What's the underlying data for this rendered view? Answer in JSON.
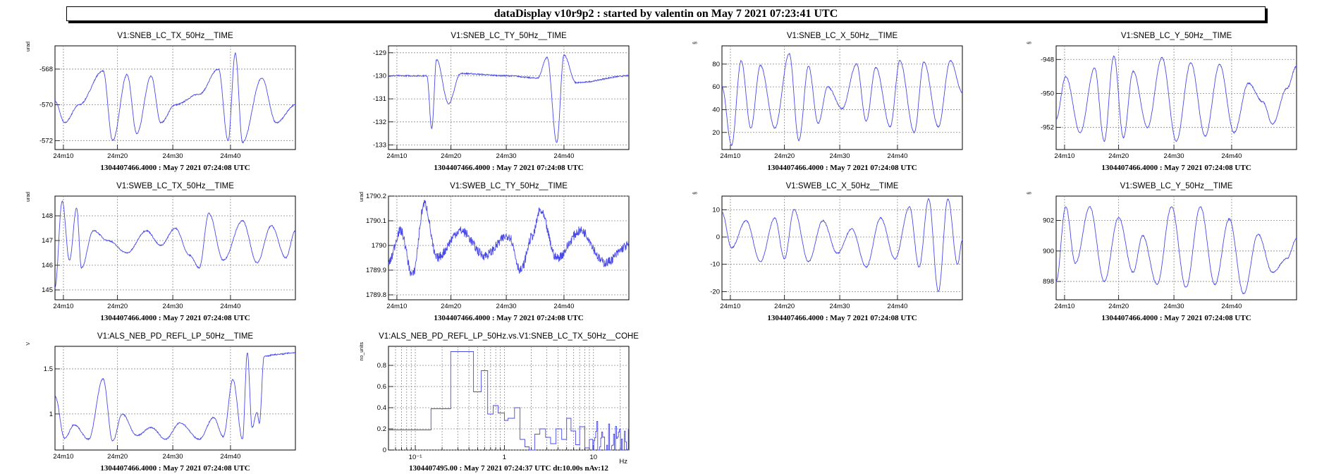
{
  "header": {
    "title": "dataDisplay v10r9p2 : started by valentin on May  7 2021 07:23:41 UTC"
  },
  "chart_data": [
    {
      "type": "line",
      "title": "V1:SNEB_LC_TX_50Hz__TIME",
      "ylabel": "urad",
      "ylim": [
        -572.5,
        -566.7
      ],
      "yticks": [
        -568,
        -570,
        -572
      ],
      "xticks": [
        "24m10",
        "24m20",
        "24m30",
        "24m40"
      ],
      "footer": "1304407466.4000 : May  7 2021 07:24:08 UTC",
      "key_points": [
        [
          0.0,
          -569.8
        ],
        [
          0.04,
          -571
        ],
        [
          0.1,
          -570
        ],
        [
          0.2,
          -568.1
        ],
        [
          0.24,
          -572
        ],
        [
          0.3,
          -568.3
        ],
        [
          0.34,
          -571.6
        ],
        [
          0.4,
          -568.4
        ],
        [
          0.44,
          -571
        ],
        [
          0.5,
          -570
        ],
        [
          0.6,
          -569.4
        ],
        [
          0.68,
          -568
        ],
        [
          0.72,
          -572
        ],
        [
          0.75,
          -567.1
        ],
        [
          0.78,
          -572.1
        ],
        [
          0.86,
          -568.5
        ],
        [
          0.92,
          -571
        ],
        [
          1.0,
          -570
        ]
      ]
    },
    {
      "type": "line",
      "title": "V1:SNEB_LC_TY_50Hz__TIME",
      "ylabel": "",
      "ylim": [
        -133.2,
        -128.7
      ],
      "yticks": [
        -129,
        -130,
        -131,
        -132,
        -133
      ],
      "xticks": [
        "24m10",
        "24m20",
        "24m30",
        "24m40"
      ],
      "footer": "1304407466.4000 : May  7 2021 07:24:08 UTC",
      "key_points": [
        [
          0.0,
          -130
        ],
        [
          0.16,
          -130
        ],
        [
          0.18,
          -132.3
        ],
        [
          0.2,
          -129.3
        ],
        [
          0.25,
          -131.2
        ],
        [
          0.3,
          -129.9
        ],
        [
          0.5,
          -130
        ],
        [
          0.62,
          -130.1
        ],
        [
          0.66,
          -129.2
        ],
        [
          0.7,
          -132.9
        ],
        [
          0.73,
          -129.1
        ],
        [
          0.78,
          -130.3
        ],
        [
          1.0,
          -130
        ]
      ]
    },
    {
      "type": "line",
      "title": "V1:SNEB_LC_X_50Hz__TIME",
      "ylabel": "§",
      "ylim": [
        5,
        96
      ],
      "yticks": [
        20,
        40,
        60,
        80
      ],
      "xticks": [
        "24m10",
        "24m20",
        "24m30",
        "24m40"
      ],
      "footer": "1304407466.4000 : May  7 2021 07:24:08 UTC",
      "key_points": [
        [
          0.0,
          60
        ],
        [
          0.04,
          9
        ],
        [
          0.08,
          83
        ],
        [
          0.12,
          24
        ],
        [
          0.16,
          79
        ],
        [
          0.22,
          24
        ],
        [
          0.28,
          89
        ],
        [
          0.32,
          13
        ],
        [
          0.36,
          78
        ],
        [
          0.4,
          28
        ],
        [
          0.44,
          60
        ],
        [
          0.5,
          41
        ],
        [
          0.56,
          80
        ],
        [
          0.6,
          30
        ],
        [
          0.64,
          77
        ],
        [
          0.7,
          25
        ],
        [
          0.74,
          83
        ],
        [
          0.8,
          20
        ],
        [
          0.84,
          82
        ],
        [
          0.9,
          25
        ],
        [
          0.95,
          83
        ],
        [
          1.0,
          55
        ]
      ]
    },
    {
      "type": "line",
      "title": "V1:SNEB_LC_Y_50Hz__TIME",
      "ylabel": "§",
      "ylim": [
        -953.3,
        -947.2
      ],
      "yticks": [
        -948,
        -950,
        -952
      ],
      "xticks": [
        "24m10",
        "24m20",
        "24m30",
        "24m40"
      ],
      "footer": "1304407466.4000 : May  7 2021 07:24:08 UTC",
      "key_points": [
        [
          0.0,
          -951.5
        ],
        [
          0.04,
          -949
        ],
        [
          0.1,
          -952.3
        ],
        [
          0.16,
          -948.5
        ],
        [
          0.2,
          -952.8
        ],
        [
          0.24,
          -947.8
        ],
        [
          0.28,
          -952.6
        ],
        [
          0.32,
          -948.7
        ],
        [
          0.38,
          -952
        ],
        [
          0.44,
          -947.9
        ],
        [
          0.5,
          -952.8
        ],
        [
          0.56,
          -948.2
        ],
        [
          0.62,
          -952.5
        ],
        [
          0.68,
          -948.3
        ],
        [
          0.74,
          -952.3
        ],
        [
          0.8,
          -949.4
        ],
        [
          0.86,
          -950.5
        ],
        [
          0.9,
          -951.8
        ],
        [
          0.96,
          -949.7
        ],
        [
          1.0,
          -948.4
        ]
      ]
    },
    {
      "type": "line",
      "title": "V1:SWEB_LC_TX_50Hz__TIME",
      "ylabel": "urad",
      "ylim": [
        144.6,
        148.8
      ],
      "yticks": [
        145,
        146,
        147,
        148
      ],
      "xticks": [
        "24m10",
        "24m20",
        "24m30",
        "24m40"
      ],
      "footer": "1304407466.4000 : May  7 2021 07:24:08 UTC",
      "key_points": [
        [
          0.0,
          145.1
        ],
        [
          0.03,
          148.6
        ],
        [
          0.06,
          146.2
        ],
        [
          0.09,
          148.3
        ],
        [
          0.11,
          145.9
        ],
        [
          0.16,
          147.4
        ],
        [
          0.22,
          147
        ],
        [
          0.3,
          146.5
        ],
        [
          0.38,
          147.4
        ],
        [
          0.44,
          146.8
        ],
        [
          0.5,
          147.5
        ],
        [
          0.56,
          146.4
        ],
        [
          0.6,
          145.9
        ],
        [
          0.64,
          148.1
        ],
        [
          0.7,
          146.2
        ],
        [
          0.78,
          147.8
        ],
        [
          0.84,
          146.1
        ],
        [
          0.9,
          147.6
        ],
        [
          0.96,
          146.3
        ],
        [
          1.0,
          147.4
        ]
      ]
    },
    {
      "type": "line",
      "title": "V1:SWEB_LC_TY_50Hz__TIME",
      "ylabel": "urad",
      "ylim": [
        1789.78,
        1790.2
      ],
      "yticks": [
        1789.8,
        1789.9,
        1790,
        1790.1,
        1790.2
      ],
      "xticks": [
        "24m10",
        "24m20",
        "24m30",
        "24m40"
      ],
      "footer": "1304407466.4000 : May  7 2021 07:24:08 UTC",
      "key_points": [
        [
          0.0,
          1789.93
        ],
        [
          0.05,
          1790.06
        ],
        [
          0.1,
          1789.88
        ],
        [
          0.15,
          1790.17
        ],
        [
          0.2,
          1789.95
        ],
        [
          0.3,
          1790.06
        ],
        [
          0.4,
          1789.96
        ],
        [
          0.5,
          1790.04
        ],
        [
          0.55,
          1789.9
        ],
        [
          0.6,
          1790.04
        ],
        [
          0.63,
          1790.14
        ],
        [
          0.7,
          1789.95
        ],
        [
          0.8,
          1790.06
        ],
        [
          0.9,
          1789.93
        ],
        [
          1.0,
          1790
        ]
      ]
    },
    {
      "type": "line",
      "title": "V1:SWEB_LC_X_50Hz__TIME",
      "ylabel": "§",
      "ylim": [
        -23,
        15
      ],
      "yticks": [
        10,
        0,
        -10,
        -20
      ],
      "xticks": [
        "24m10",
        "24m20",
        "24m30",
        "24m40"
      ],
      "footer": "1304407466.4000 : May  7 2021 07:24:08 UTC",
      "key_points": [
        [
          0.0,
          9
        ],
        [
          0.04,
          -4
        ],
        [
          0.1,
          6
        ],
        [
          0.16,
          -9
        ],
        [
          0.22,
          7
        ],
        [
          0.26,
          -8
        ],
        [
          0.3,
          10
        ],
        [
          0.36,
          -9
        ],
        [
          0.42,
          6
        ],
        [
          0.48,
          -6
        ],
        [
          0.54,
          3
        ],
        [
          0.6,
          -11
        ],
        [
          0.66,
          7
        ],
        [
          0.72,
          -8
        ],
        [
          0.78,
          11
        ],
        [
          0.82,
          -11
        ],
        [
          0.86,
          14
        ],
        [
          0.9,
          -20
        ],
        [
          0.94,
          14
        ],
        [
          0.98,
          -10
        ],
        [
          1.0,
          -1
        ]
      ]
    },
    {
      "type": "line",
      "title": "V1:SWEB_LC_Y_50Hz__TIME",
      "ylabel": "§",
      "ylim": [
        896.8,
        903.6
      ],
      "yticks": [
        898,
        900,
        902
      ],
      "xticks": [
        "24m10",
        "24m20",
        "24m30",
        "24m40"
      ],
      "footer": "1304407466.4000 : May  7 2021 07:24:08 UTC",
      "key_points": [
        [
          0.0,
          898
        ],
        [
          0.04,
          902.9
        ],
        [
          0.08,
          899.2
        ],
        [
          0.14,
          902.9
        ],
        [
          0.2,
          898
        ],
        [
          0.26,
          902.2
        ],
        [
          0.32,
          898.6
        ],
        [
          0.36,
          901
        ],
        [
          0.42,
          897.8
        ],
        [
          0.48,
          902.9
        ],
        [
          0.54,
          897.6
        ],
        [
          0.6,
          902.9
        ],
        [
          0.66,
          897.8
        ],
        [
          0.72,
          902.1
        ],
        [
          0.78,
          897.2
        ],
        [
          0.84,
          901.1
        ],
        [
          0.9,
          898.6
        ],
        [
          0.96,
          899.5
        ],
        [
          1.0,
          900.8
        ]
      ]
    },
    {
      "type": "line",
      "title": "V1:ALS_NEB_PD_REFL_LP_50Hz__TIME",
      "ylabel": "V",
      "ylim": [
        0.6,
        1.75
      ],
      "yticks": [
        1,
        1.5
      ],
      "xticks": [
        "24m10",
        "24m20",
        "24m30",
        "24m40"
      ],
      "footer": "1304407466.4000 : May  7 2021 07:24:08 UTC",
      "key_points": [
        [
          0.0,
          1.2
        ],
        [
          0.04,
          0.73
        ],
        [
          0.08,
          0.88
        ],
        [
          0.14,
          0.72
        ],
        [
          0.2,
          1.39
        ],
        [
          0.24,
          0.7
        ],
        [
          0.28,
          1.0
        ],
        [
          0.34,
          0.76
        ],
        [
          0.4,
          0.85
        ],
        [
          0.46,
          0.72
        ],
        [
          0.52,
          0.9
        ],
        [
          0.6,
          0.72
        ],
        [
          0.66,
          0.96
        ],
        [
          0.7,
          0.75
        ],
        [
          0.74,
          1.38
        ],
        [
          0.78,
          0.72
        ],
        [
          0.8,
          1.68
        ],
        [
          0.82,
          0.85
        ],
        [
          0.84,
          1.02
        ],
        [
          0.85,
          0.9
        ],
        [
          0.87,
          1.64
        ],
        [
          0.92,
          1.66
        ],
        [
          1.0,
          1.68
        ]
      ]
    },
    {
      "type": "line",
      "title": "V1:ALS_NEB_PD_REFL_LP_50Hz.vs.V1:SNEB_LC_TX_50Hz__COHE",
      "ylabel": "no_units",
      "xscale": "log",
      "xlim": [
        0.05,
        25
      ],
      "ylim": [
        0,
        0.98
      ],
      "yticks": [
        0,
        0.2,
        0.4,
        0.6,
        0.8
      ],
      "xlabel": "Hz",
      "xticks": [
        "10⁻¹",
        "1",
        "10"
      ],
      "footer": "1304407495.00 : May  7 2021 07:24:37 UTC dt:10.00s nAv:12",
      "steps": [
        [
          0.05,
          0.19
        ],
        [
          0.15,
          0.39
        ],
        [
          0.25,
          0.93
        ],
        [
          0.45,
          0.55
        ],
        [
          0.55,
          0.75
        ],
        [
          0.65,
          0.34
        ],
        [
          0.75,
          0.42
        ],
        [
          0.85,
          0.35
        ],
        [
          1.0,
          0.28
        ],
        [
          1.1,
          0.3
        ],
        [
          1.3,
          0.4
        ],
        [
          1.5,
          0.1
        ],
        [
          1.7,
          0.03
        ],
        [
          1.9,
          0.0
        ],
        [
          2.2,
          0.15
        ],
        [
          2.5,
          0.2
        ],
        [
          2.9,
          0.12
        ],
        [
          3.3,
          0.06
        ],
        [
          3.8,
          0.2
        ],
        [
          4.4,
          0.1
        ],
        [
          5.0,
          0.3
        ],
        [
          5.6,
          0.18
        ],
        [
          6.3,
          0.05
        ],
        [
          7.0,
          0.22
        ],
        [
          8.0,
          0.02
        ],
        [
          9.0,
          0.1
        ]
      ]
    }
  ]
}
